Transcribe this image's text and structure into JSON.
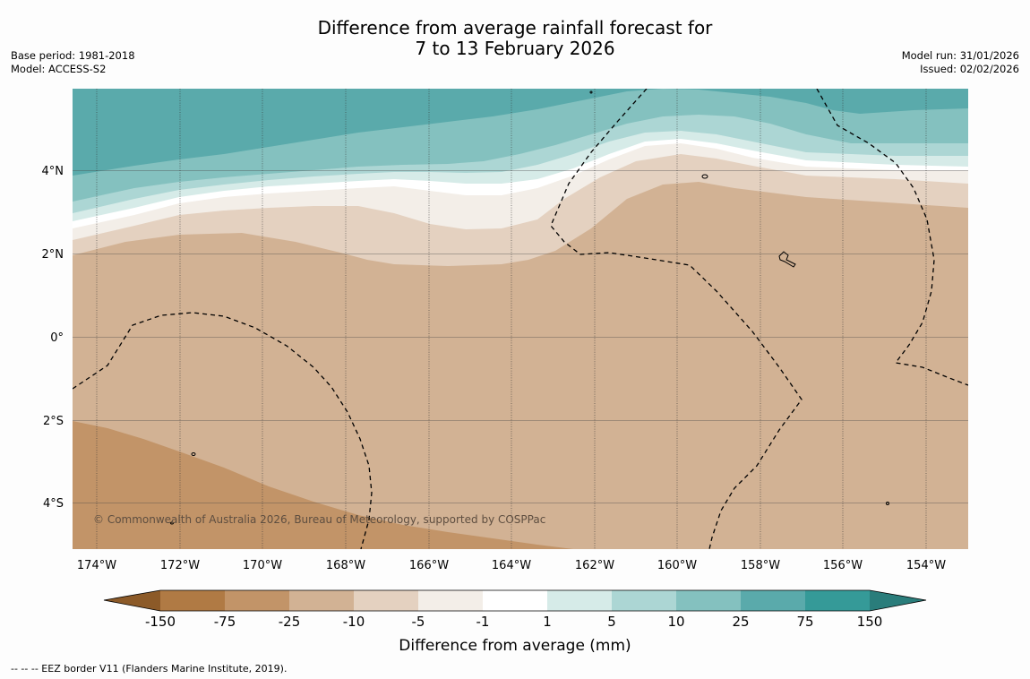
{
  "title": {
    "line1": "Difference from average rainfall forecast for",
    "line2": "7 to 13 February 2026"
  },
  "meta_left": {
    "base_period": "Base period: 1981-2018",
    "model": "Model: ACCESS-S2"
  },
  "meta_right": {
    "model_run": "Model run: 31/01/2026",
    "issued": "Issued: 02/02/2026"
  },
  "map": {
    "lat_labels": [
      "4°N",
      "2°N",
      "0°",
      "2°S",
      "4°S"
    ],
    "lon_labels": [
      "174°W",
      "172°W",
      "170°W",
      "168°W",
      "166°W",
      "164°W",
      "162°W",
      "160°W",
      "158°W",
      "156°W",
      "154°W"
    ],
    "copyright": "© Commonwealth of Australia 2026, Bureau of Meteorology, supported by COSPPac"
  },
  "colorbar": {
    "ticks": [
      "-150",
      "-75",
      "-25",
      "-10",
      "-5",
      "-1",
      "1",
      "5",
      "10",
      "25",
      "75",
      "150"
    ],
    "colors": [
      "#8c5a28",
      "#b07a44",
      "#c29468",
      "#d2b294",
      "#e4d1c0",
      "#f3eee8",
      "#ffffff",
      "#d6ebe8",
      "#acd6d4",
      "#84c1bf",
      "#5aaaab",
      "#359a98",
      "#2a7d7b"
    ],
    "label": "Difference from average (mm)"
  },
  "footer": {
    "eez_note": "--  --  -- EEZ border V11 (Flanders Marine Institute, 2019)."
  }
}
